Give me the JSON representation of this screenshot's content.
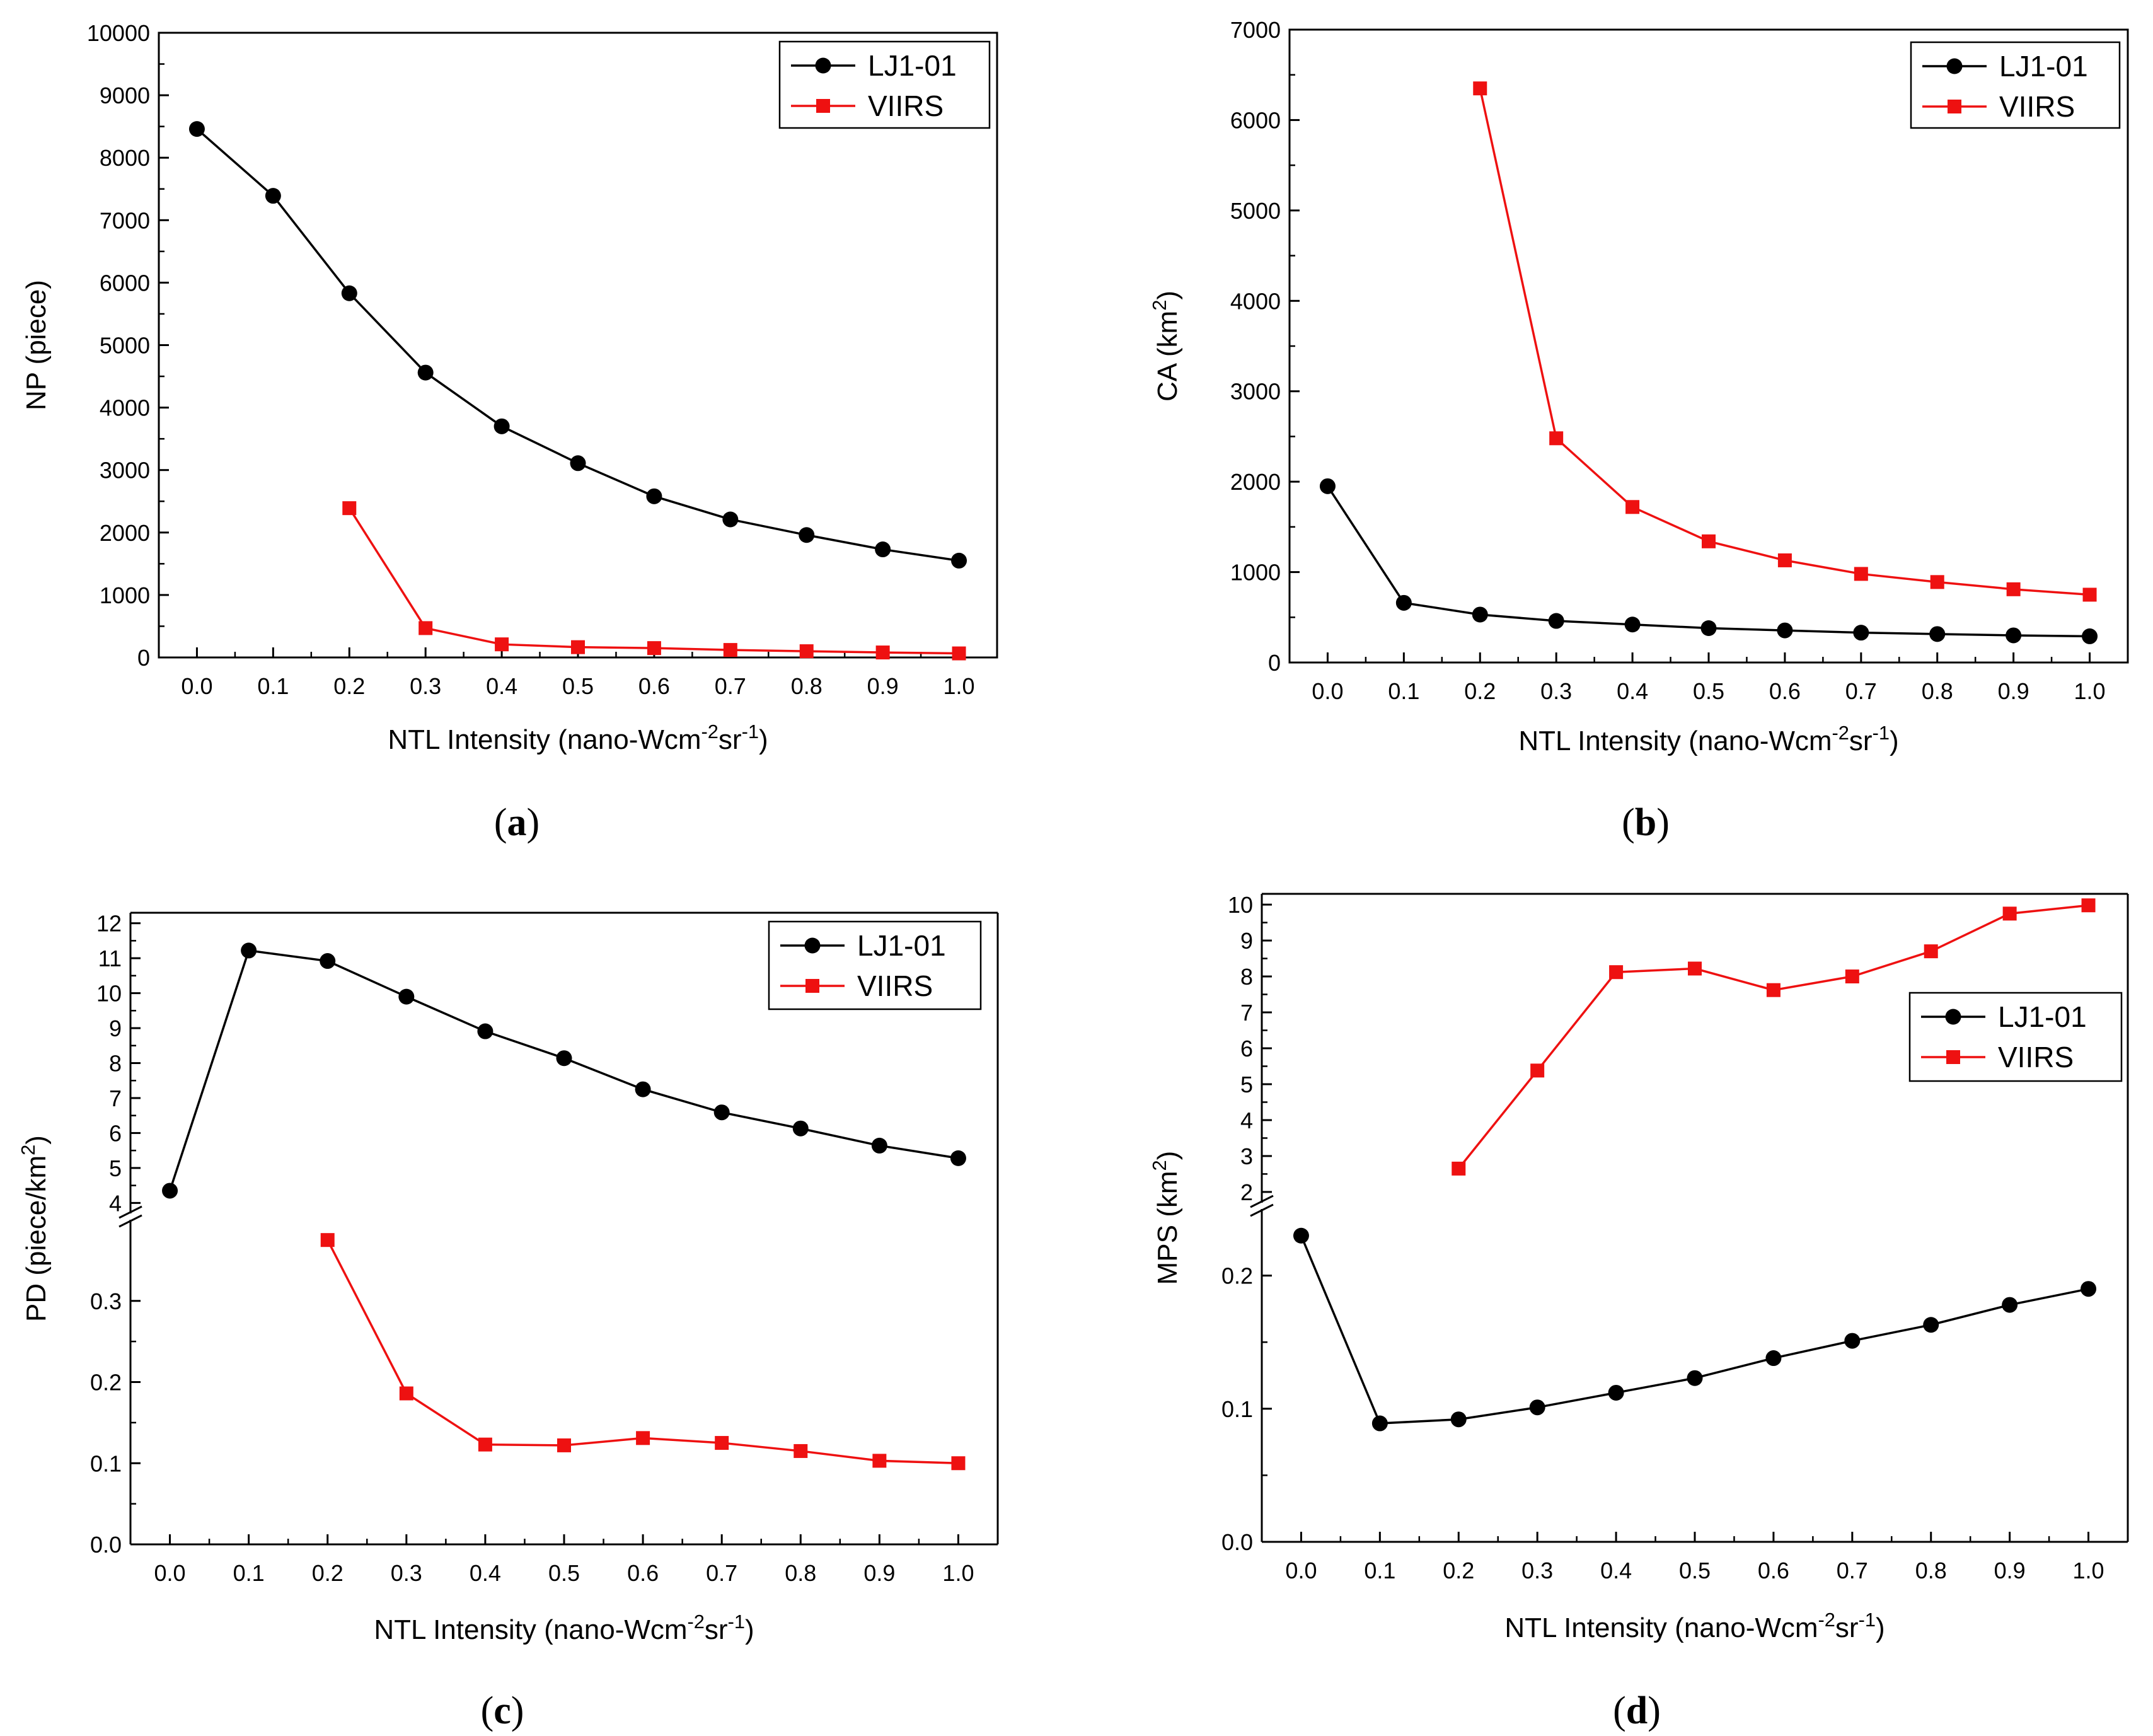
{
  "colors": {
    "lj1": "#000000",
    "viirs": "#ee1111",
    "axis": "#000000",
    "background": "#ffffff"
  },
  "chart_data": [
    {
      "panel": "(a)",
      "panel_letter": "a",
      "type": "line",
      "xlabel": "NTL Intensity (nano-Wcm-2sr-1)",
      "xlabel_parts": [
        "NTL Intensity (nano-Wcm",
        "-2",
        "sr",
        "-1",
        ")"
      ],
      "ylabel": "NP (piece)",
      "ylabel_parts": [
        "NP (piece)"
      ],
      "x_ticks": [
        "0.0",
        "0.1",
        "0.2",
        "0.3",
        "0.4",
        "0.5",
        "0.6",
        "0.7",
        "0.8",
        "0.9",
        "1.0"
      ],
      "xlim": [
        -0.05,
        1.05
      ],
      "y_segments": [
        {
          "range": [
            0,
            10000
          ],
          "ticks": [
            0,
            1000,
            2000,
            3000,
            4000,
            5000,
            6000,
            7000,
            8000,
            9000,
            10000
          ],
          "tick_labels": [
            "0",
            "1000",
            "2000",
            "3000",
            "4000",
            "5000",
            "6000",
            "7000",
            "8000",
            "9000",
            "10000"
          ]
        }
      ],
      "legend": {
        "position": "top-right",
        "entries": [
          "LJ1-01",
          "VIIRS"
        ]
      },
      "series": [
        {
          "name": "LJ1-01",
          "marker": "circle",
          "x": [
            0.0,
            0.1,
            0.2,
            0.3,
            0.4,
            0.5,
            0.6,
            0.7,
            0.8,
            0.9,
            1.0
          ],
          "y": [
            8460,
            7390,
            5830,
            4560,
            3700,
            3110,
            2580,
            2210,
            1960,
            1730,
            1550
          ]
        },
        {
          "name": "VIIRS",
          "marker": "square",
          "x": [
            0.2,
            0.3,
            0.4,
            0.5,
            0.6,
            0.7,
            0.8,
            0.9,
            1.0
          ],
          "y": [
            2390,
            470,
            210,
            165,
            150,
            120,
            100,
            80,
            65
          ]
        }
      ]
    },
    {
      "panel": "(b)",
      "panel_letter": "b",
      "type": "line",
      "xlabel": "NTL Intensity (nano-Wcm-2sr-1)",
      "xlabel_parts": [
        "NTL Intensity (nano-Wcm",
        "-2",
        "sr",
        "-1",
        ")"
      ],
      "ylabel": "CA (km2)",
      "ylabel_parts": [
        "CA (km",
        "2",
        ")"
      ],
      "x_ticks": [
        "0.0",
        "0.1",
        "0.2",
        "0.3",
        "0.4",
        "0.5",
        "0.6",
        "0.7",
        "0.8",
        "0.9",
        "1.0"
      ],
      "xlim": [
        -0.05,
        1.05
      ],
      "y_segments": [
        {
          "range": [
            0,
            7000
          ],
          "ticks": [
            0,
            1000,
            2000,
            3000,
            4000,
            5000,
            6000,
            7000
          ],
          "tick_labels": [
            "0",
            "1000",
            "2000",
            "3000",
            "4000",
            "5000",
            "6000",
            "7000"
          ]
        }
      ],
      "legend": {
        "position": "top-right",
        "entries": [
          "LJ1-01",
          "VIIRS"
        ]
      },
      "series": [
        {
          "name": "LJ1-01",
          "marker": "circle",
          "x": [
            0.0,
            0.1,
            0.2,
            0.3,
            0.4,
            0.5,
            0.6,
            0.7,
            0.8,
            0.9,
            1.0
          ],
          "y": [
            1950,
            660,
            530,
            460,
            420,
            380,
            355,
            330,
            315,
            300,
            290
          ]
        },
        {
          "name": "VIIRS",
          "marker": "square",
          "x": [
            0.2,
            0.3,
            0.4,
            0.5,
            0.6,
            0.7,
            0.8,
            0.9,
            1.0
          ],
          "y": [
            6350,
            2480,
            1720,
            1340,
            1130,
            980,
            890,
            810,
            750
          ]
        }
      ]
    },
    {
      "panel": "(c)",
      "panel_letter": "c",
      "type": "line",
      "xlabel": "NTL Intensity (nano-Wcm-2sr-1)",
      "xlabel_parts": [
        "NTL Intensity (nano-Wcm",
        "-2",
        "sr",
        "-1",
        ")"
      ],
      "ylabel": "PD (piece/km2)",
      "ylabel_parts": [
        "PD (piece/km",
        "2",
        ")"
      ],
      "x_ticks": [
        "0.0",
        "0.1",
        "0.2",
        "0.3",
        "0.4",
        "0.5",
        "0.6",
        "0.7",
        "0.8",
        "0.9",
        "1.0"
      ],
      "xlim": [
        -0.05,
        1.05
      ],
      "axis_break": true,
      "y_segments": [
        {
          "range": [
            0,
            0.4
          ],
          "ticks": [
            0,
            0.1,
            0.2,
            0.3
          ],
          "tick_labels": [
            "0.0",
            "0.1",
            "0.2",
            "0.3"
          ]
        },
        {
          "range": [
            3.7,
            12.3
          ],
          "ticks": [
            4,
            5,
            6,
            7,
            8,
            9,
            10,
            11,
            12
          ],
          "tick_labels": [
            "4",
            "5",
            "6",
            "7",
            "8",
            "9",
            "10",
            "11",
            "12"
          ]
        }
      ],
      "legend": {
        "position": "top-right",
        "entries": [
          "LJ1-01",
          "VIIRS"
        ]
      },
      "series": [
        {
          "name": "LJ1-01",
          "marker": "circle",
          "x": [
            0.0,
            0.1,
            0.2,
            0.3,
            0.4,
            0.5,
            0.6,
            0.7,
            0.8,
            0.9,
            1.0
          ],
          "y": [
            4.35,
            11.22,
            10.92,
            9.9,
            8.91,
            8.14,
            7.25,
            6.59,
            6.13,
            5.64,
            5.28
          ]
        },
        {
          "name": "VIIRS",
          "marker": "square",
          "x": [
            0.2,
            0.3,
            0.4,
            0.5,
            0.6,
            0.7,
            0.8,
            0.9,
            1.0
          ],
          "y": [
            0.375,
            0.186,
            0.123,
            0.122,
            0.131,
            0.125,
            0.115,
            0.103,
            0.1
          ]
        }
      ]
    },
    {
      "panel": "(d)",
      "panel_letter": "d",
      "type": "line",
      "xlabel": "NTL Intensity (nano-Wcm-2sr-1)",
      "xlabel_parts": [
        "NTL Intensity (nano-Wcm",
        "-2",
        "sr",
        "-1",
        ")"
      ],
      "ylabel": "MPS (km2)",
      "ylabel_parts": [
        "MPS (km",
        "2",
        ")"
      ],
      "x_ticks": [
        "0.0",
        "0.1",
        "0.2",
        "0.3",
        "0.4",
        "0.5",
        "0.6",
        "0.7",
        "0.8",
        "0.9",
        "1.0"
      ],
      "xlim": [
        -0.05,
        1.05
      ],
      "axis_break": true,
      "y_segments": [
        {
          "range": [
            0,
            0.25
          ],
          "ticks": [
            0,
            0.1,
            0.2
          ],
          "tick_labels": [
            "0.0",
            "0.1",
            "0.2"
          ]
        },
        {
          "range": [
            1.7,
            10.3
          ],
          "ticks": [
            2,
            3,
            4,
            5,
            6,
            7,
            8,
            9,
            10
          ],
          "tick_labels": [
            "2",
            "3",
            "4",
            "5",
            "6",
            "7",
            "8",
            "9",
            "10"
          ]
        }
      ],
      "legend": {
        "position": "middle-right",
        "entries": [
          "LJ1-01",
          "VIIRS"
        ]
      },
      "series": [
        {
          "name": "LJ1-01",
          "marker": "circle",
          "x": [
            0.0,
            0.1,
            0.2,
            0.3,
            0.4,
            0.5,
            0.6,
            0.7,
            0.8,
            0.9,
            1.0
          ],
          "y": [
            0.23,
            0.089,
            0.092,
            0.101,
            0.112,
            0.123,
            0.138,
            0.151,
            0.163,
            0.178,
            0.19
          ]
        },
        {
          "name": "VIIRS",
          "marker": "square",
          "x": [
            0.2,
            0.3,
            0.4,
            0.5,
            0.6,
            0.7,
            0.8,
            0.9,
            1.0
          ],
          "y": [
            2.65,
            5.38,
            8.12,
            8.22,
            7.62,
            8.0,
            8.7,
            9.75,
            9.98
          ]
        }
      ]
    }
  ]
}
